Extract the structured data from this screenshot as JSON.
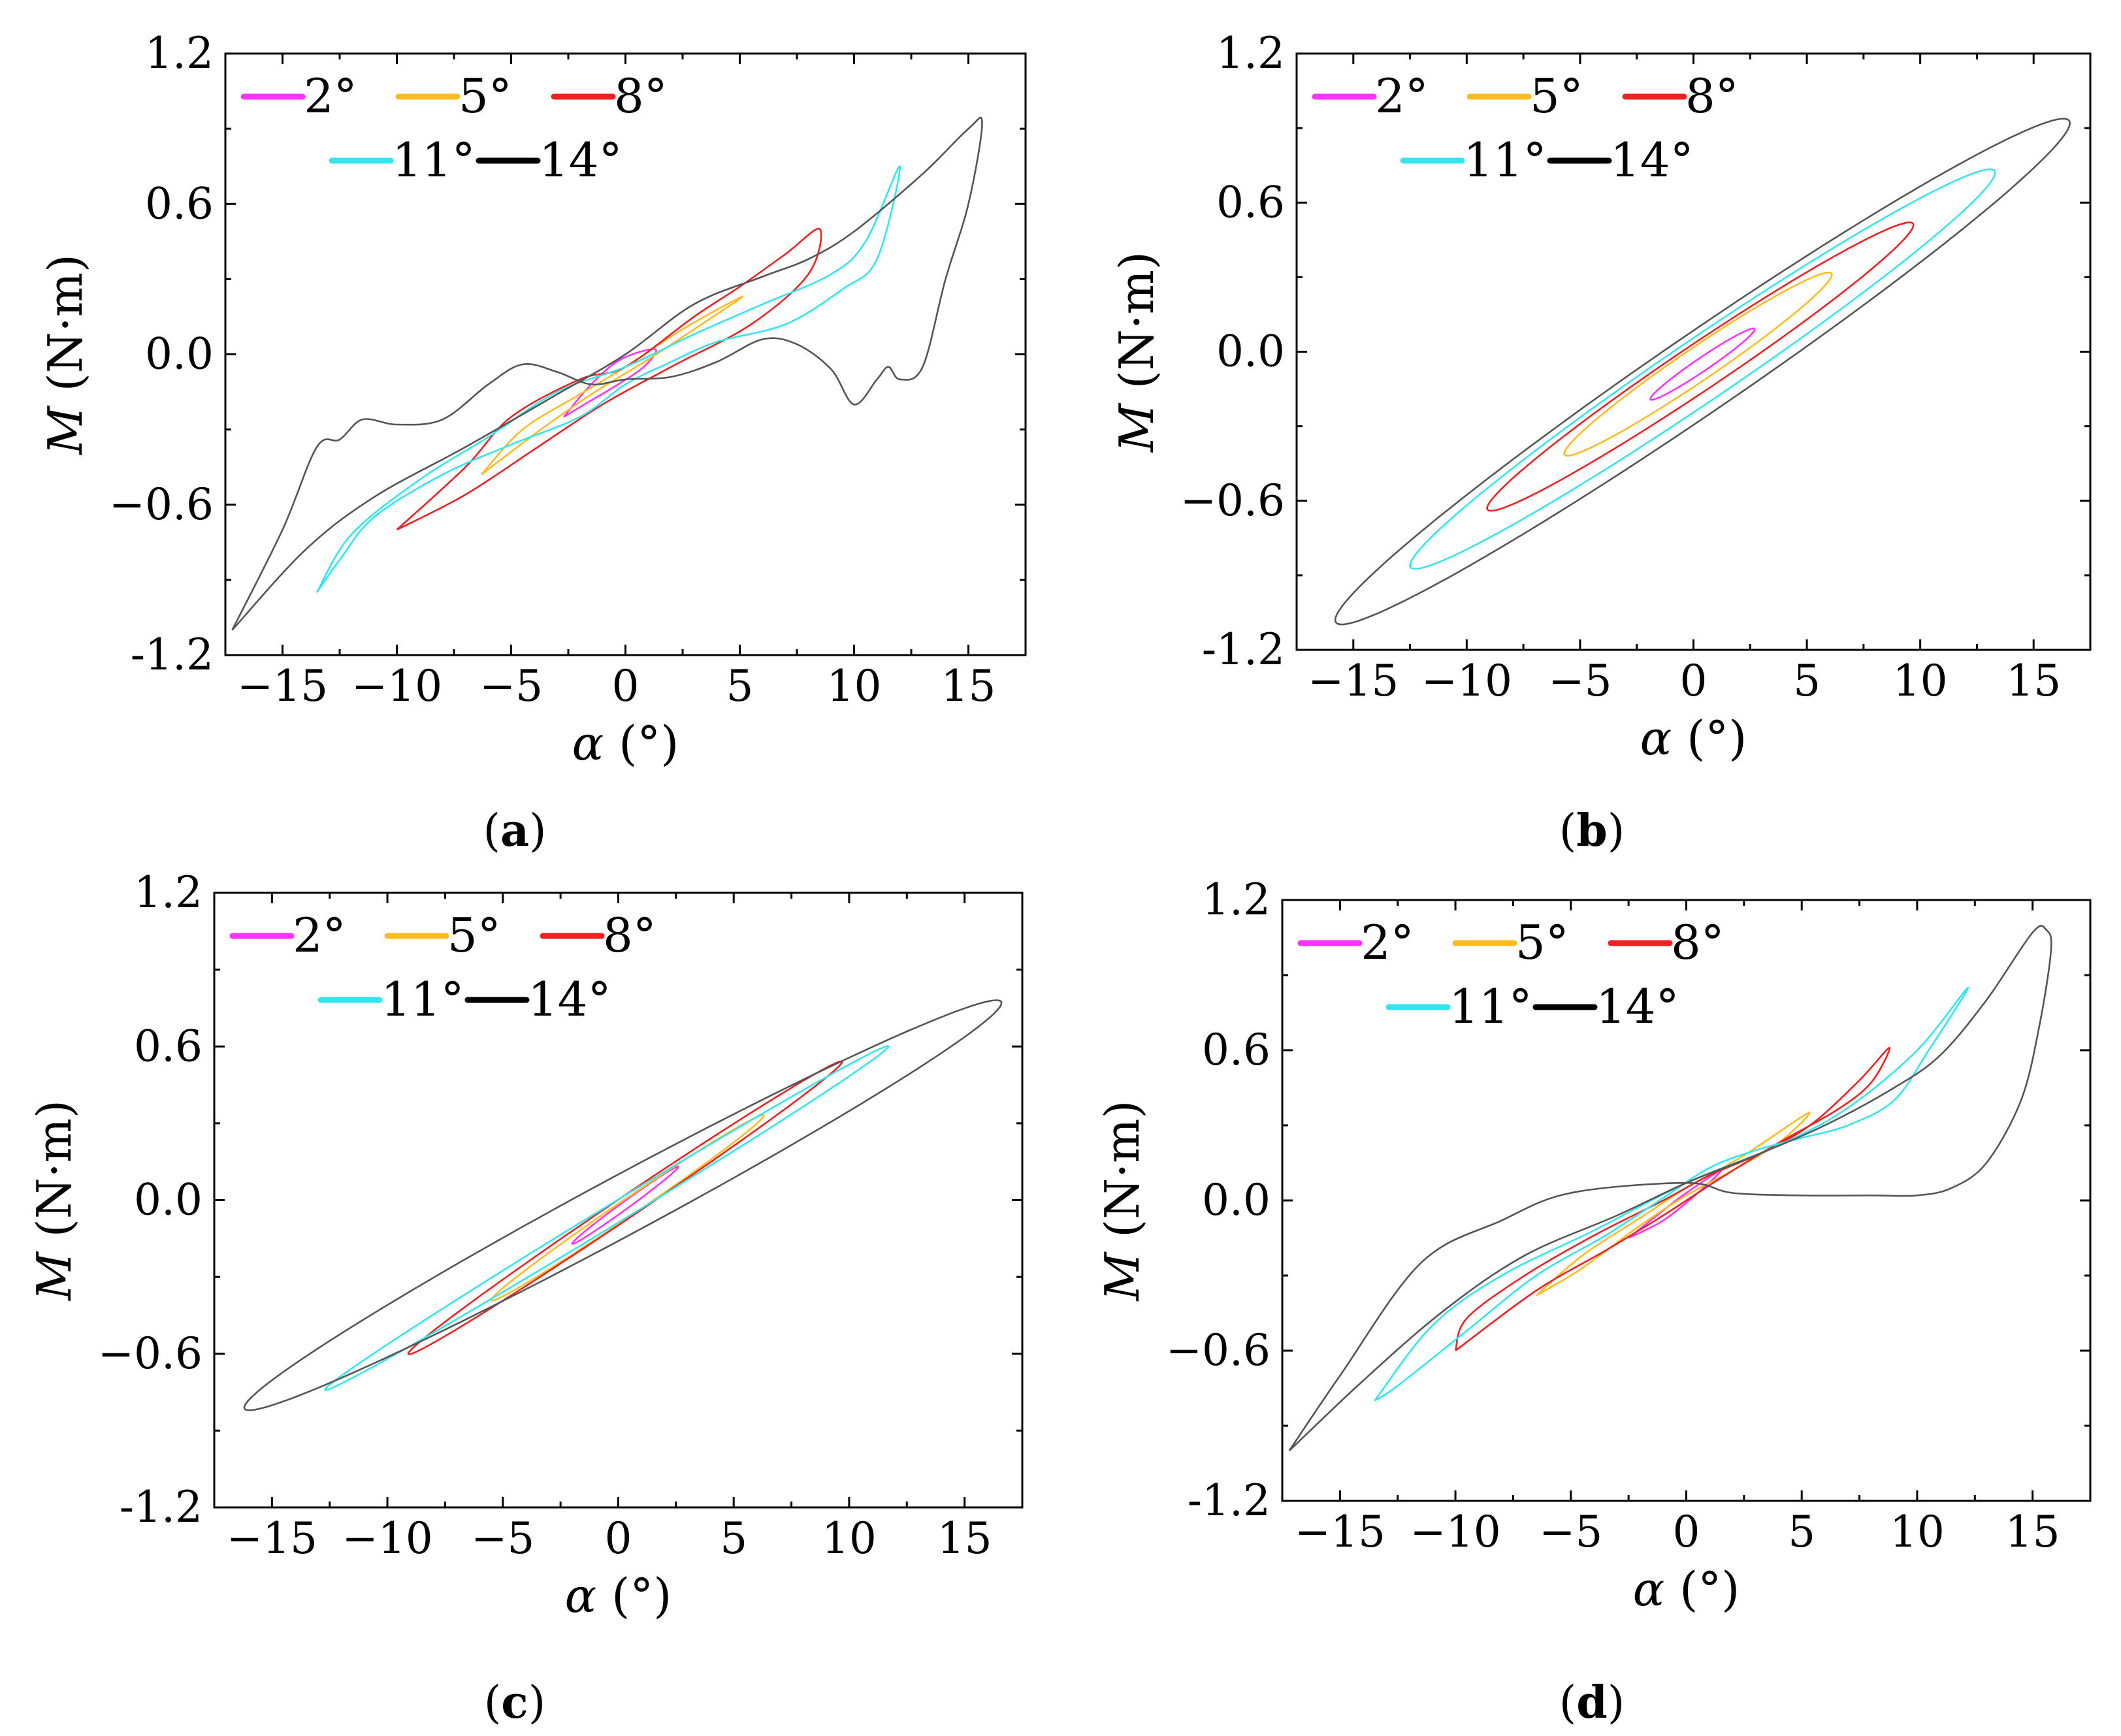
{
  "figure_captions": [
    "(a)",
    "(b)",
    "(c)",
    "(d)"
  ],
  "colors": {
    "2°": "#ff33ff",
    "5°": "#ffbb22",
    "8°": "#ee2222",
    "11°": "#33e6ee",
    "14°": "#555555",
    "legend_14°": "#000000"
  },
  "chart_data": [
    {
      "panel": "a",
      "type": "line",
      "xlabel": "α (°)",
      "ylabel": "M (N·m)",
      "xlim": [
        -17.5,
        17.5
      ],
      "ylim": [
        -1.2,
        1.2
      ],
      "xticks": [
        -15,
        -10,
        -5,
        0,
        5,
        10,
        15
      ],
      "xtick_labels": [
        "−15",
        "−10",
        "−5",
        "0",
        "5",
        "10",
        "15"
      ],
      "yticks": [
        -1.2,
        -0.6,
        0.0,
        0.6,
        1.2
      ],
      "ytick_labels": [
        "-1.2",
        "−0.6",
        "0.0",
        "0.6",
        "1.2"
      ],
      "legend": [
        "2°",
        "5°",
        "8°",
        "11°",
        "14°"
      ],
      "series": [
        {
          "name": "2°",
          "points": [
            [
              -2.7,
              -0.25
            ],
            [
              -1.5,
              -0.12
            ],
            [
              -0.2,
              -0.02
            ],
            [
              1.3,
              0.02
            ],
            [
              0.8,
              -0.05
            ],
            [
              -0.5,
              -0.13
            ],
            [
              -1.8,
              -0.2
            ],
            [
              -2.7,
              -0.25
            ]
          ]
        },
        {
          "name": "5°",
          "points": [
            [
              -6.3,
              -0.48
            ],
            [
              -4.5,
              -0.3
            ],
            [
              -2,
              -0.16
            ],
            [
              0,
              -0.05
            ],
            [
              2.5,
              0.1
            ],
            [
              5.1,
              0.23
            ],
            [
              3.5,
              0.13
            ],
            [
              1,
              -0.02
            ],
            [
              -1.5,
              -0.16
            ],
            [
              -4,
              -0.32
            ],
            [
              -6.3,
              -0.48
            ]
          ]
        },
        {
          "name": "8°",
          "points": [
            [
              -10,
              -0.7
            ],
            [
              -7,
              -0.45
            ],
            [
              -5,
              -0.25
            ],
            [
              -2,
              -0.1
            ],
            [
              0,
              -0.05
            ],
            [
              3,
              0.15
            ],
            [
              5,
              0.27
            ],
            [
              7,
              0.4
            ],
            [
              8.5,
              0.5
            ],
            [
              8,
              0.32
            ],
            [
              5.5,
              0.12
            ],
            [
              2,
              -0.05
            ],
            [
              -1,
              -0.2
            ],
            [
              -4,
              -0.38
            ],
            [
              -7,
              -0.56
            ],
            [
              -10,
              -0.7
            ]
          ]
        },
        {
          "name": "11°",
          "points": [
            [
              -13.5,
              -0.95
            ],
            [
              -12,
              -0.72
            ],
            [
              -9,
              -0.5
            ],
            [
              -6,
              -0.33
            ],
            [
              -3,
              -0.15
            ],
            [
              0,
              -0.05
            ],
            [
              3,
              0.08
            ],
            [
              6,
              0.2
            ],
            [
              9,
              0.32
            ],
            [
              10.5,
              0.45
            ],
            [
              12,
              0.75
            ],
            [
              11,
              0.38
            ],
            [
              9.5,
              0.26
            ],
            [
              7,
              0.12
            ],
            [
              4,
              0.05
            ],
            [
              2,
              -0.03
            ],
            [
              0,
              -0.12
            ],
            [
              -2,
              -0.25
            ],
            [
              -5,
              -0.36
            ],
            [
              -8,
              -0.48
            ],
            [
              -11,
              -0.65
            ],
            [
              -12.5,
              -0.82
            ],
            [
              -13.5,
              -0.95
            ]
          ]
        },
        {
          "name": "14°",
          "points": [
            [
              -17.2,
              -1.1
            ],
            [
              -15,
              -0.7
            ],
            [
              -13.5,
              -0.37
            ],
            [
              -12.5,
              -0.34
            ],
            [
              -11.5,
              -0.26
            ],
            [
              -10,
              -0.28
            ],
            [
              -8,
              -0.26
            ],
            [
              -6,
              -0.12
            ],
            [
              -4.5,
              -0.04
            ],
            [
              -3,
              -0.07
            ],
            [
              -1.5,
              -0.12
            ],
            [
              0,
              -0.1
            ],
            [
              2,
              -0.09
            ],
            [
              4,
              -0.03
            ],
            [
              6,
              0.06
            ],
            [
              7.5,
              0.04
            ],
            [
              9,
              -0.06
            ],
            [
              10,
              -0.2
            ],
            [
              11,
              -0.1
            ],
            [
              11.5,
              -0.05
            ],
            [
              12,
              -0.1
            ],
            [
              13,
              -0.05
            ],
            [
              14,
              0.3
            ],
            [
              15,
              0.6
            ],
            [
              15.6,
              0.92
            ],
            [
              15,
              0.9
            ],
            [
              13,
              0.72
            ],
            [
              10,
              0.49
            ],
            [
              8,
              0.38
            ],
            [
              6,
              0.31
            ],
            [
              3,
              0.2
            ],
            [
              0,
              0.0
            ],
            [
              -3,
              -0.16
            ],
            [
              -7,
              -0.37
            ],
            [
              -11,
              -0.57
            ],
            [
              -14,
              -0.78
            ],
            [
              -17.2,
              -1.1
            ]
          ]
        }
      ]
    },
    {
      "panel": "b",
      "type": "line",
      "xlabel": "α (°)",
      "ylabel": "M (N·m)",
      "xlim": [
        -17.5,
        17.5
      ],
      "ylim": [
        -1.2,
        1.2
      ],
      "xticks": [
        -15,
        -10,
        -5,
        0,
        5,
        10,
        15
      ],
      "xtick_labels": [
        "−15",
        "−10",
        "−5",
        "0",
        "5",
        "10",
        "15"
      ],
      "yticks": [
        -1.2,
        -0.6,
        0.0,
        0.6,
        1.2
      ],
      "ytick_labels": [
        "-1.2",
        "−0.6",
        "0.0",
        "0.6",
        "1.2"
      ],
      "legend": [
        "2°",
        "5°",
        "8°",
        "11°",
        "14°"
      ],
      "series": [
        {
          "name": "2°",
          "ellipse": {
            "cx": 0.4,
            "cy": -0.05,
            "ax": 2.3,
            "ay": 0.14,
            "w": 0.032
          }
        },
        {
          "name": "5°",
          "ellipse": {
            "cx": 0.2,
            "cy": -0.05,
            "ax": 5.9,
            "ay": 0.36,
            "w": 0.08
          }
        },
        {
          "name": "8°",
          "ellipse": {
            "cx": 0.3,
            "cy": -0.06,
            "ax": 9.4,
            "ay": 0.57,
            "w": 0.11
          }
        },
        {
          "name": "11°",
          "ellipse": {
            "cx": 0.4,
            "cy": -0.07,
            "ax": 12.9,
            "ay": 0.79,
            "w": 0.15
          }
        },
        {
          "name": "14°",
          "ellipse": {
            "cx": 0.4,
            "cy": -0.08,
            "ax": 16.2,
            "ay": 1.0,
            "w": 0.19
          }
        }
      ]
    },
    {
      "panel": "c",
      "type": "line",
      "xlabel": "α (°)",
      "ylabel": "M (N·m)",
      "xlim": [
        -17.5,
        17.5
      ],
      "ylim": [
        -1.2,
        1.2
      ],
      "xticks": [
        -15,
        -10,
        -5,
        0,
        5,
        10,
        15
      ],
      "xtick_labels": [
        "−15",
        "−10",
        "−5",
        "0",
        "5",
        "10",
        "15"
      ],
      "yticks": [
        -1.2,
        -0.6,
        0.0,
        0.6,
        1.2
      ],
      "ytick_labels": [
        "-1.2",
        "−0.6",
        "0.0",
        "0.6",
        "1.2"
      ],
      "legend": [
        "2°",
        "5°",
        "8°",
        "11°",
        "14°"
      ],
      "series": [
        {
          "name": "2°",
          "ellipse": {
            "cx": 0.3,
            "cy": -0.02,
            "ax": 2.3,
            "ay": 0.15,
            "w": 0.018
          }
        },
        {
          "name": "5°",
          "ellipse": {
            "cx": 0.4,
            "cy": -0.03,
            "ax": 5.9,
            "ay": 0.36,
            "w": 0.04
          }
        },
        {
          "name": "8°",
          "ellipse": {
            "cx": 0.3,
            "cy": -0.03,
            "ax": 9.4,
            "ay": 0.57,
            "w": 0.05
          }
        },
        {
          "name": "11°",
          "ellipse": {
            "cx": -0.5,
            "cy": -0.07,
            "ax": 12.2,
            "ay": 0.67,
            "w": 0.045
          }
        },
        {
          "name": "14°",
          "ellipse": {
            "cx": 0.2,
            "cy": -0.02,
            "ax": 16.4,
            "ay": 0.79,
            "w": 0.13
          }
        }
      ]
    },
    {
      "panel": "d",
      "type": "line",
      "xlabel": "α (°)",
      "ylabel": "M (N·m)",
      "xlim": [
        -17.5,
        17.5
      ],
      "ylim": [
        -1.2,
        1.2
      ],
      "xticks": [
        -15,
        -10,
        -5,
        0,
        5,
        10,
        15
      ],
      "xtick_labels": [
        "−15",
        "−10",
        "−5",
        "0",
        "5",
        "10",
        "15"
      ],
      "yticks": [
        -1.2,
        -0.6,
        0.0,
        0.6,
        1.2
      ],
      "ytick_labels": [
        "-1.2",
        "−0.6",
        "0.0",
        "0.6",
        "1.2"
      ],
      "legend": [
        "2°",
        "5°",
        "8°",
        "11°",
        "14°"
      ],
      "series": [
        {
          "name": "2°",
          "points": [
            [
              -2.5,
              -0.15
            ],
            [
              -1,
              -0.04
            ],
            [
              0,
              0.03
            ],
            [
              1.5,
              0.12
            ],
            [
              0.5,
              0.03
            ],
            [
              -1,
              -0.08
            ],
            [
              -2.5,
              -0.15
            ]
          ]
        },
        {
          "name": "5°",
          "points": [
            [
              -6.5,
              -0.38
            ],
            [
              -4.5,
              -0.22
            ],
            [
              -2,
              -0.07
            ],
            [
              0,
              0.05
            ],
            [
              2.5,
              0.18
            ],
            [
              5.3,
              0.35
            ],
            [
              4,
              0.23
            ],
            [
              2,
              0.12
            ],
            [
              0,
              0.02
            ],
            [
              -2,
              -0.1
            ],
            [
              -4.5,
              -0.27
            ],
            [
              -6.5,
              -0.38
            ]
          ]
        },
        {
          "name": "8°",
          "points": [
            [
              -10,
              -0.6
            ],
            [
              -9.5,
              -0.47
            ],
            [
              -7,
              -0.3
            ],
            [
              -4,
              -0.14
            ],
            [
              -1,
              0.0
            ],
            [
              1,
              0.1
            ],
            [
              3.5,
              0.2
            ],
            [
              5.5,
              0.31
            ],
            [
              7.5,
              0.48
            ],
            [
              8.8,
              0.61
            ],
            [
              8,
              0.47
            ],
            [
              6.5,
              0.36
            ],
            [
              4,
              0.23
            ],
            [
              1.5,
              0.09
            ],
            [
              -1,
              -0.06
            ],
            [
              -3.5,
              -0.2
            ],
            [
              -6.5,
              -0.36
            ],
            [
              -10,
              -0.6
            ]
          ]
        },
        {
          "name": "11°",
          "points": [
            [
              -13.5,
              -0.8
            ],
            [
              -11,
              -0.5
            ],
            [
              -8,
              -0.3
            ],
            [
              -4,
              -0.12
            ],
            [
              0,
              0.07
            ],
            [
              4,
              0.22
            ],
            [
              7,
              0.37
            ],
            [
              10,
              0.6
            ],
            [
              12.2,
              0.85
            ],
            [
              10.5,
              0.6
            ],
            [
              9,
              0.4
            ],
            [
              7,
              0.3
            ],
            [
              5,
              0.25
            ],
            [
              3,
              0.2
            ],
            [
              1,
              0.13
            ],
            [
              -1,
              0.01
            ],
            [
              -3.5,
              -0.14
            ],
            [
              -6.5,
              -0.3
            ],
            [
              -9.5,
              -0.52
            ],
            [
              -12.5,
              -0.74
            ],
            [
              -13.5,
              -0.8
            ]
          ]
        },
        {
          "name": "14°",
          "points": [
            [
              -17.2,
              -1.0
            ],
            [
              -15,
              -0.7
            ],
            [
              -11.5,
              -0.25
            ],
            [
              -8,
              -0.08
            ],
            [
              -5,
              0.03
            ],
            [
              0,
              0.07
            ],
            [
              2,
              0.03
            ],
            [
              5,
              0.02
            ],
            [
              8,
              0.02
            ],
            [
              10,
              0.02
            ],
            [
              11.5,
              0.05
            ],
            [
              13,
              0.15
            ],
            [
              14.5,
              0.4
            ],
            [
              15.3,
              0.7
            ],
            [
              15.8,
              1.0
            ],
            [
              15.6,
              1.08
            ],
            [
              15,
              1.07
            ],
            [
              13,
              0.8
            ],
            [
              11,
              0.58
            ],
            [
              9,
              0.45
            ],
            [
              6,
              0.3
            ],
            [
              3,
              0.18
            ],
            [
              0,
              0.07
            ],
            [
              -3,
              -0.06
            ],
            [
              -7,
              -0.22
            ],
            [
              -10.5,
              -0.44
            ],
            [
              -14,
              -0.72
            ],
            [
              -17.2,
              -1.0
            ]
          ]
        }
      ]
    }
  ]
}
